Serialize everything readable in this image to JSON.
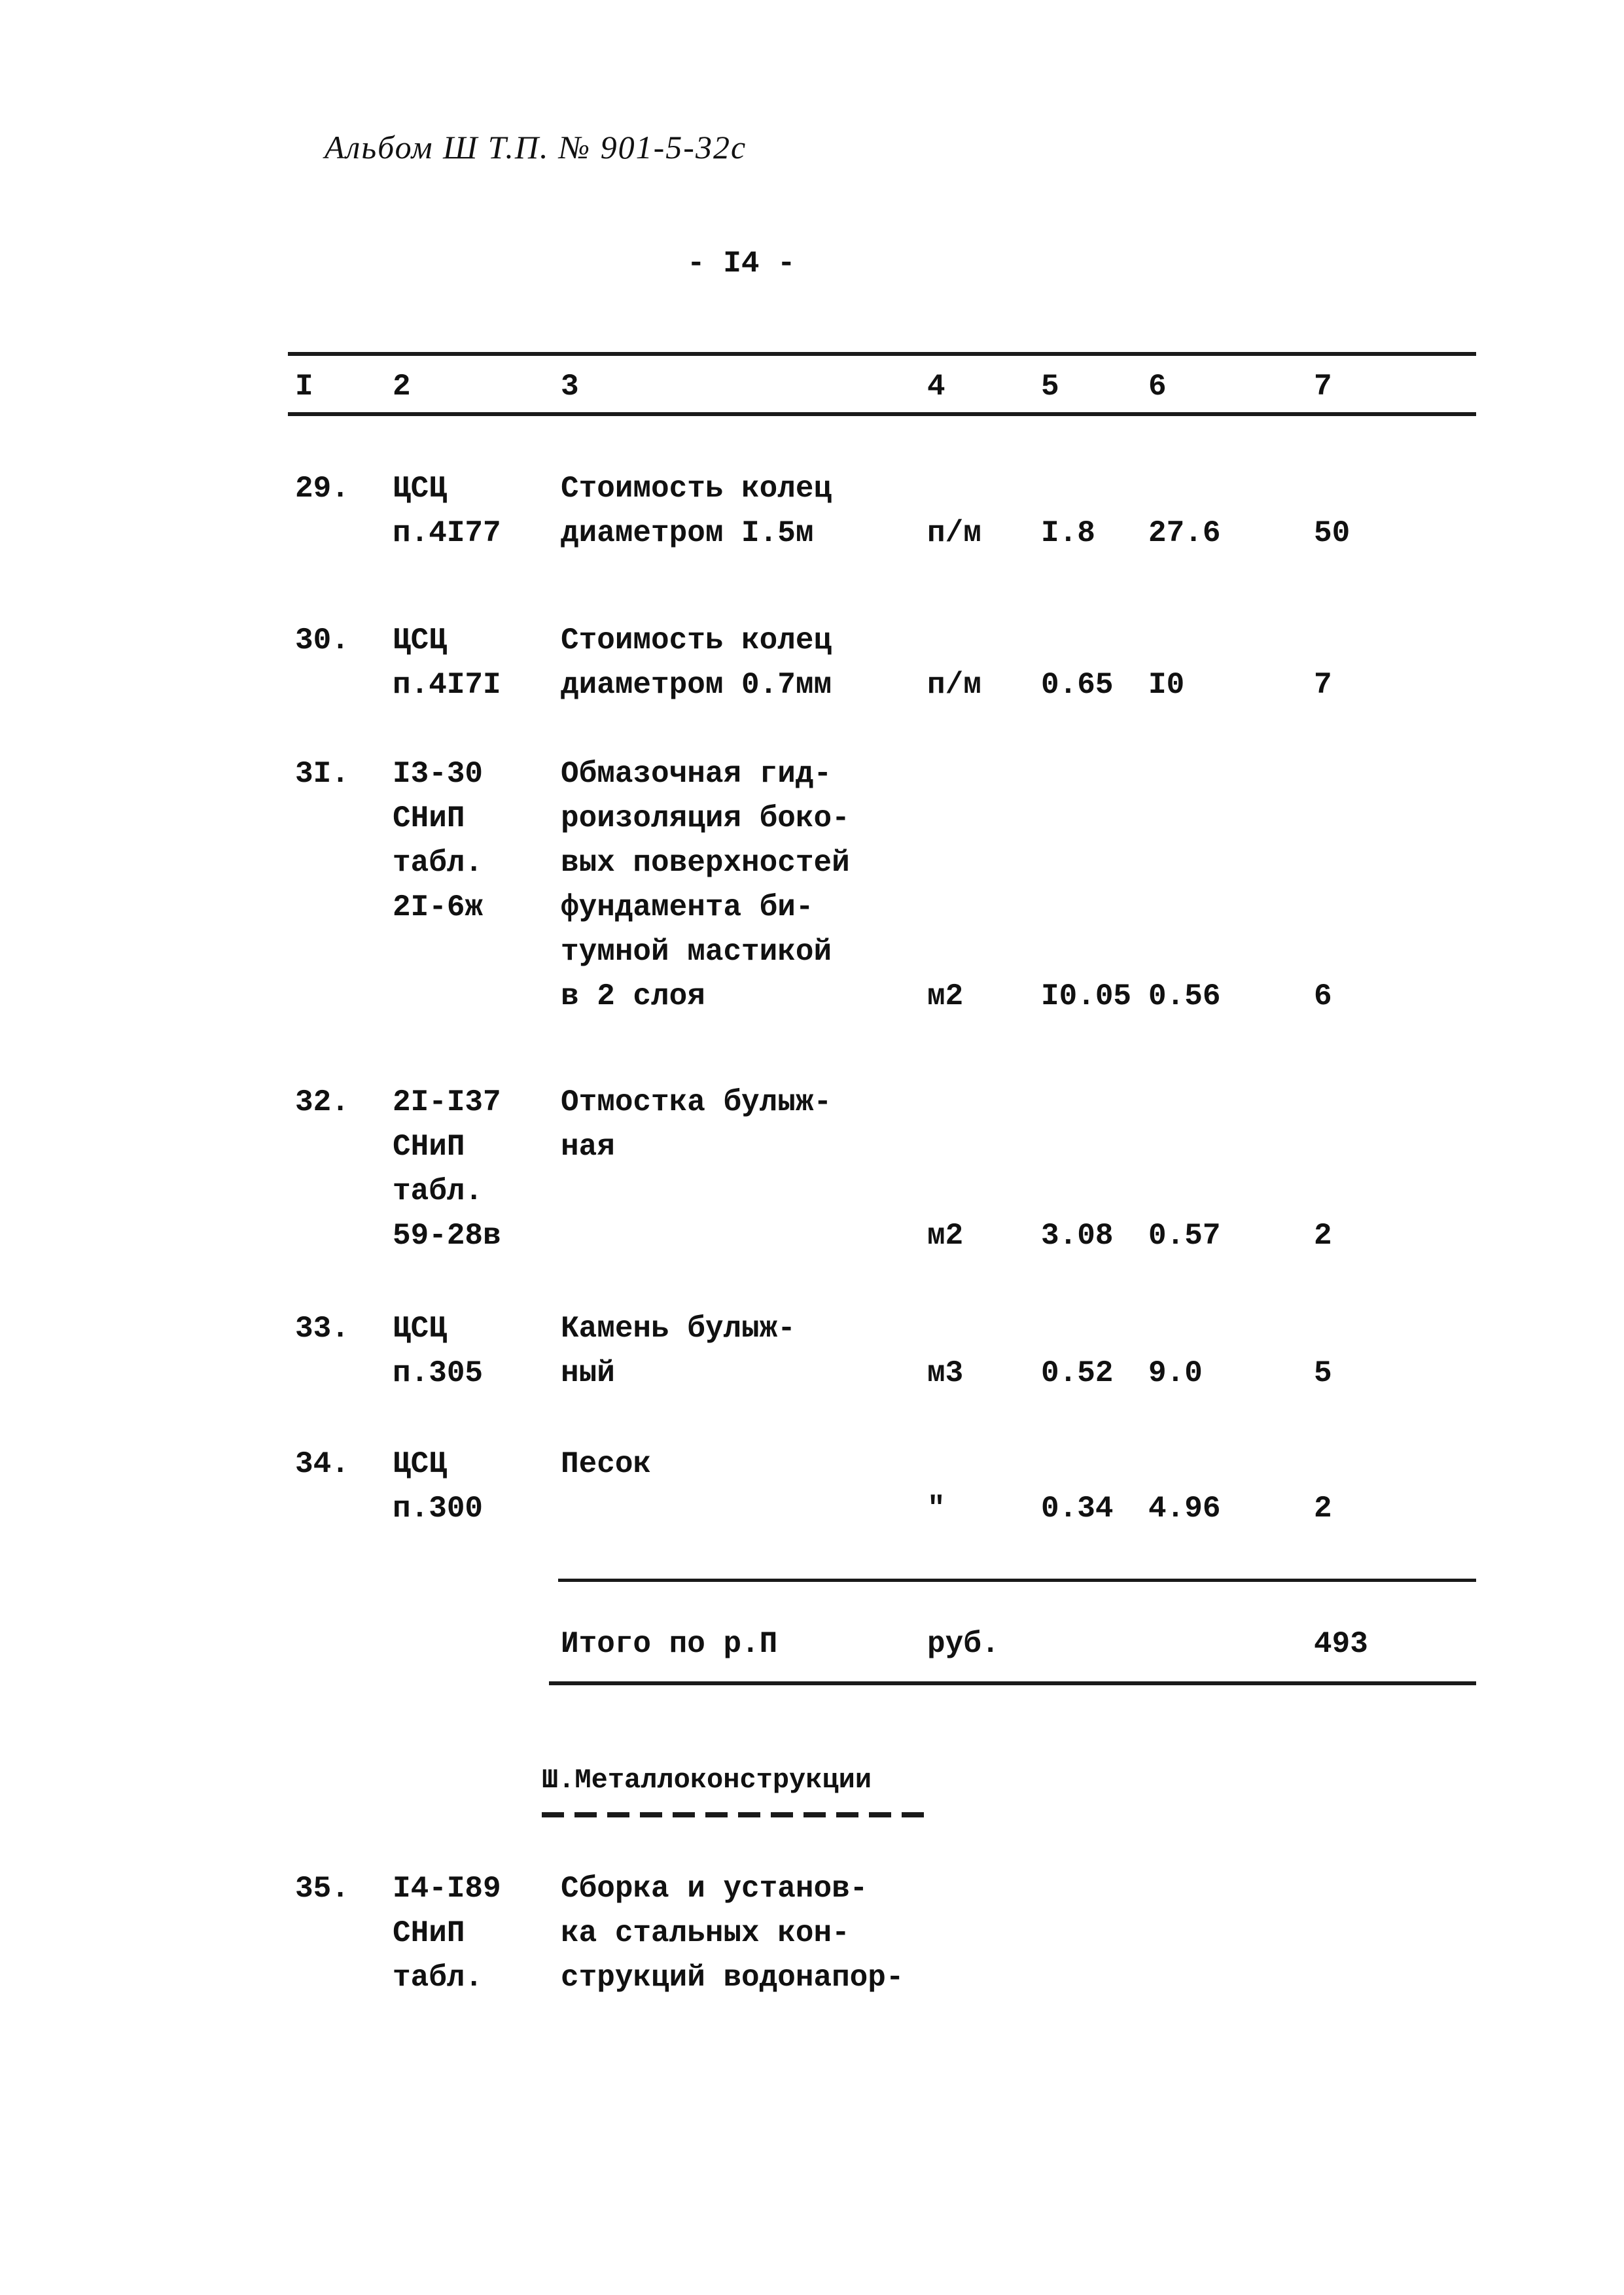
{
  "header": {
    "album": "Альбом Ш Т.П. № 901-5-32с",
    "page_number": "- I4 -"
  },
  "table": {
    "columns": [
      "I",
      "2",
      "3",
      "4",
      "5",
      "6",
      "7"
    ],
    "rows": [
      {
        "num": "29.",
        "ref": [
          "ЦСЦ",
          "п.4I77"
        ],
        "desc": [
          "Стоимость колец",
          "диаметром I.5м"
        ],
        "unit": "п/м",
        "qty": "I.8",
        "price": "27.6",
        "total": "50"
      },
      {
        "num": "30.",
        "ref": [
          "ЦСЦ",
          "п.4I7I"
        ],
        "desc": [
          "Стоимость колец",
          "диаметром 0.7мм"
        ],
        "unit": "п/м",
        "qty": "0.65",
        "price": "I0",
        "total": "7"
      },
      {
        "num": "3I.",
        "ref": [
          "I3-30",
          "СНиП",
          "табл.",
          "2I-6ж"
        ],
        "desc": [
          "Обмазочная гид-",
          "роизоляция боко-",
          "вых поверхностей",
          "фундамента би-",
          "тумной мастикой",
          "в 2 слоя"
        ],
        "unit": "м2",
        "qty": "I0.05",
        "price": "0.56",
        "total": "6"
      },
      {
        "num": "32.",
        "ref": [
          "2I-I37",
          "СНиП",
          "табл.",
          "59-28в"
        ],
        "desc": [
          "Отмостка булыж-",
          "ная"
        ],
        "unit": "м2",
        "qty": "3.08",
        "price": "0.57",
        "total": "2"
      },
      {
        "num": "33.",
        "ref": [
          "ЦСЦ",
          "п.305"
        ],
        "desc": [
          "Камень булыж-",
          "ный"
        ],
        "unit": "м3",
        "qty": "0.52",
        "price": "9.0",
        "total": "5"
      },
      {
        "num": "34.",
        "ref": [
          "ЦСЦ",
          "п.300"
        ],
        "desc": [
          "Песок"
        ],
        "unit": "\"",
        "qty": "0.34",
        "price": "4.96",
        "total": "2"
      }
    ],
    "subtotal": {
      "label": "Итого по р.П",
      "unit": "руб.",
      "total": "493"
    },
    "section_title": "Ш.Металлоконструкции",
    "last_row": {
      "num": "35.",
      "ref": [
        "I4-I89",
        "СНиП",
        "табл."
      ],
      "desc": [
        "Сборка и установ-",
        "ка стальных кон-",
        "струкций водонапор-"
      ]
    }
  }
}
